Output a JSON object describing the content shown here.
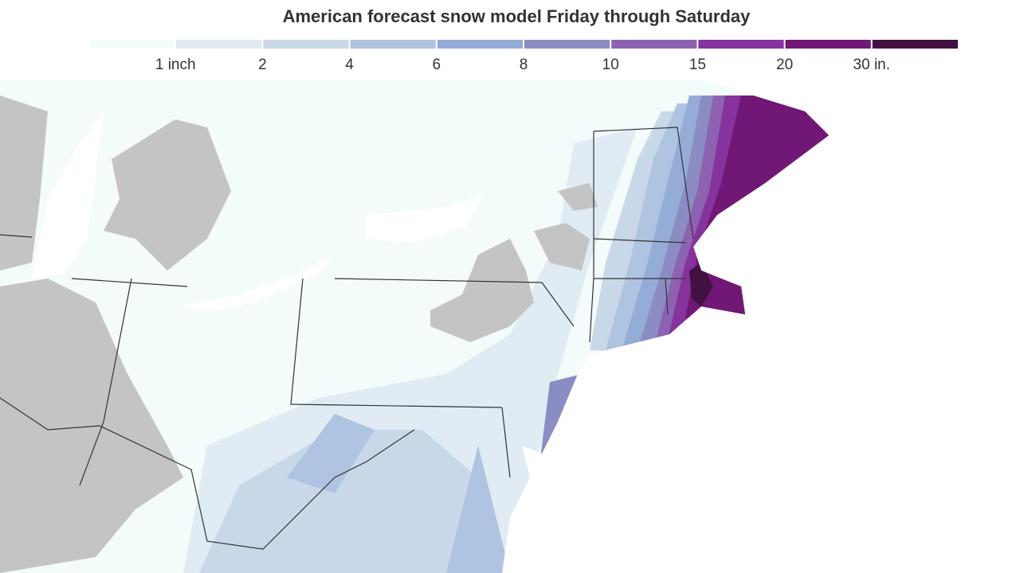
{
  "header": {
    "title": "American forecast snow model Friday through Saturday"
  },
  "legend": {
    "colors": [
      "#f4fbfb",
      "#e0ebf3",
      "#c9d8e9",
      "#aec4e0",
      "#95acd6",
      "#8c8cc4",
      "#8d62b0",
      "#86339d",
      "#711876",
      "#431042"
    ],
    "labels": [
      "1 inch",
      "2",
      "4",
      "6",
      "8",
      "10",
      "15",
      "20",
      "30 in."
    ]
  }
}
